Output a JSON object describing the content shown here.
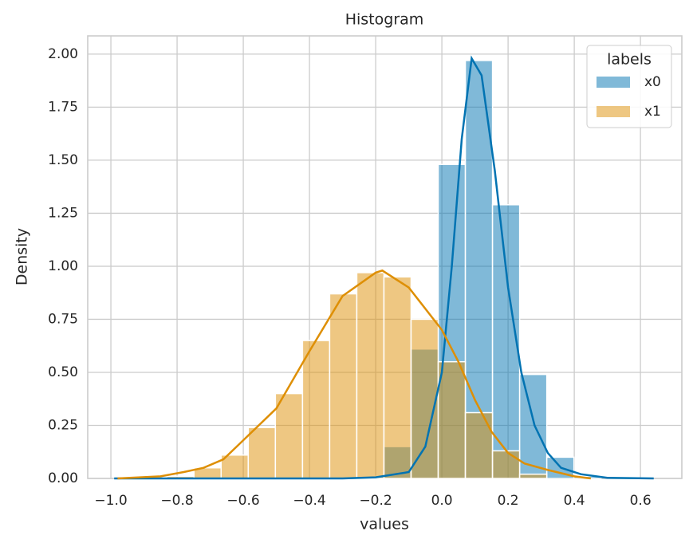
{
  "chart_data": {
    "type": "histogram",
    "title": "Histogram",
    "x_label": "values",
    "y_label": "Density",
    "bins": [
      -0.995,
      -0.913,
      -0.831,
      -0.749,
      -0.667,
      -0.585,
      -0.503,
      -0.421,
      -0.339,
      -0.257,
      -0.175,
      -0.093,
      -0.011,
      0.071,
      0.153,
      0.235,
      0.317,
      0.399,
      0.481,
      0.563,
      0.645
    ],
    "series": [
      {
        "name": "x0",
        "color": "#0173b2",
        "values": [
          0,
          0,
          0,
          0,
          0,
          0,
          0,
          0,
          0,
          0.01,
          0.15,
          0.61,
          1.48,
          1.97,
          1.29,
          0.49,
          0.1,
          0.01,
          0,
          0
        ],
        "kde": {
          "x": [
            -0.99,
            -0.3,
            -0.2,
            -0.1,
            -0.05,
            0,
            0.03,
            0.06,
            0.09,
            0.12,
            0.16,
            0.2,
            0.24,
            0.28,
            0.32,
            0.36,
            0.42,
            0.5,
            0.64
          ],
          "values": [
            0,
            0,
            0.005,
            0.03,
            0.15,
            0.5,
            1.0,
            1.6,
            1.98,
            1.9,
            1.45,
            0.9,
            0.5,
            0.25,
            0.12,
            0.05,
            0.02,
            0.003,
            0
          ]
        }
      },
      {
        "name": "x1",
        "color": "#de8f05",
        "values": [
          0,
          0,
          0.01,
          0.05,
          0.11,
          0.24,
          0.4,
          0.65,
          0.87,
          0.97,
          0.95,
          0.75,
          0.55,
          0.31,
          0.13,
          0.02,
          0,
          0,
          0,
          0
        ],
        "kde": {
          "x": [
            -0.98,
            -0.85,
            -0.78,
            -0.72,
            -0.66,
            -0.6,
            -0.5,
            -0.4,
            -0.3,
            -0.2,
            -0.18,
            -0.1,
            0,
            0.05,
            0.1,
            0.15,
            0.2,
            0.25,
            0.32,
            0.4,
            0.45
          ],
          "values": [
            0,
            0.01,
            0.03,
            0.05,
            0.09,
            0.18,
            0.33,
            0.6,
            0.86,
            0.97,
            0.98,
            0.9,
            0.7,
            0.55,
            0.37,
            0.22,
            0.12,
            0.07,
            0.04,
            0.01,
            0
          ]
        }
      }
    ],
    "legend_title": "labels",
    "legend": "upper right",
    "grid": true,
    "xlim": [
      -1.07,
      0.725
    ],
    "ylim": [
      0,
      2.086
    ],
    "xticks": [
      {
        "value": -1.0,
        "label": "−1.0"
      },
      {
        "value": -0.8,
        "label": "−0.8"
      },
      {
        "value": -0.6,
        "label": "−0.6"
      },
      {
        "value": -0.4,
        "label": "−0.4"
      },
      {
        "value": -0.2,
        "label": "−0.2"
      },
      {
        "value": 0.0,
        "label": "0.0"
      },
      0.2,
      0.4,
      0.6
    ],
    "yticks": [
      {
        "value": 0,
        "label": "0.00"
      },
      0.25,
      {
        "value": 0.5,
        "label": "0.50"
      },
      0.75,
      {
        "value": 1,
        "label": "1.00"
      },
      1.25,
      {
        "value": 1.5,
        "label": "1.50"
      },
      1.75,
      {
        "value": 2,
        "label": "2.00"
      }
    ]
  }
}
